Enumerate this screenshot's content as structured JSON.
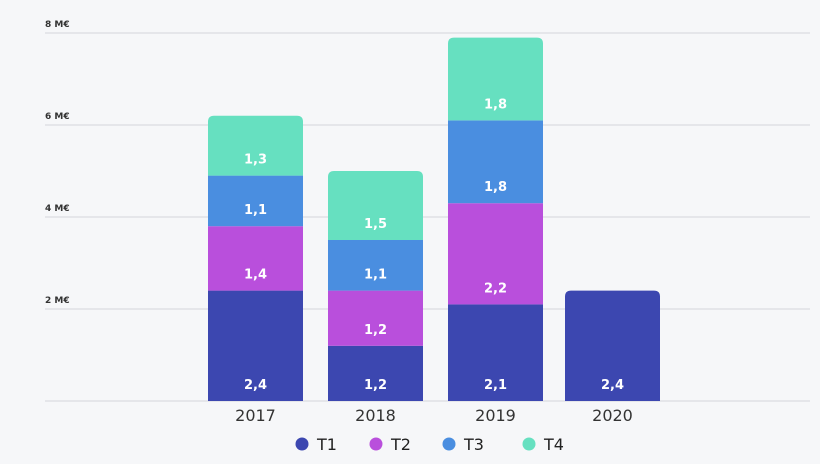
{
  "chart_data": {
    "type": "bar",
    "stacked": true,
    "categories": [
      "2017",
      "2018",
      "2019",
      "2020"
    ],
    "series": [
      {
        "name": "T1",
        "color": "#3c47b0",
        "values": [
          2.4,
          1.2,
          2.1,
          2.4
        ],
        "labels": [
          "2,4",
          "1,2",
          "2,1",
          "2,4"
        ]
      },
      {
        "name": "T2",
        "color": "#b94fdc",
        "values": [
          1.4,
          1.2,
          2.2,
          null
        ],
        "labels": [
          "1,4",
          "1,2",
          "2,2",
          ""
        ]
      },
      {
        "name": "T3",
        "color": "#4a8ee0",
        "values": [
          1.1,
          1.1,
          1.8,
          null
        ],
        "labels": [
          "1,1",
          "1,1",
          "1,8",
          ""
        ]
      },
      {
        "name": "T4",
        "color": "#66e0c0",
        "values": [
          1.3,
          1.5,
          1.8,
          null
        ],
        "labels": [
          "1,3",
          "1,5",
          "1,8",
          ""
        ]
      }
    ],
    "y_ticks": [
      {
        "value": 2,
        "label": "2 M€"
      },
      {
        "value": 4,
        "label": "4 M€"
      },
      {
        "value": 6,
        "label": "6 M€"
      },
      {
        "value": 8,
        "label": "8 M€"
      }
    ],
    "ylim": [
      0,
      8
    ],
    "grid": true,
    "legend": "bottom",
    "title": "",
    "xlabel": "",
    "ylabel": ""
  }
}
